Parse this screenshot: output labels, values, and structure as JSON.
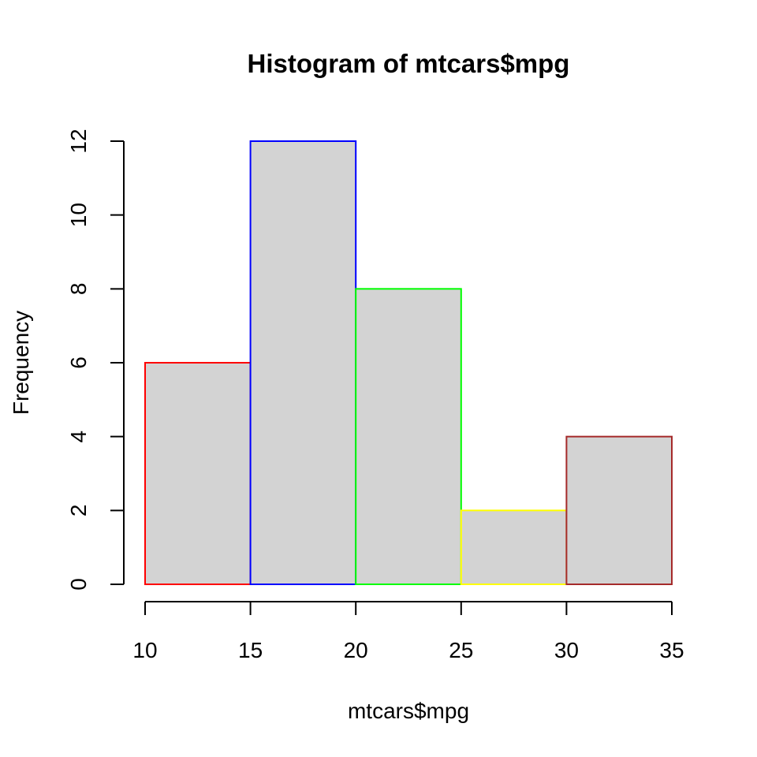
{
  "chart_data": {
    "type": "bar",
    "title": "Histogram of mtcars$mpg",
    "xlabel": "mtcars$mpg",
    "ylabel": "Frequency",
    "bins": [
      {
        "x0": 10,
        "x1": 15,
        "count": 6,
        "border": "#ff0000"
      },
      {
        "x0": 15,
        "x1": 20,
        "count": 12,
        "border": "#0000ff"
      },
      {
        "x0": 20,
        "x1": 25,
        "count": 8,
        "border": "#00ff00"
      },
      {
        "x0": 25,
        "x1": 30,
        "count": 2,
        "border": "#ffff00"
      },
      {
        "x0": 30,
        "x1": 35,
        "count": 4,
        "border": "#a52a2a"
      }
    ],
    "fill_color": "#d3d3d3",
    "xlim": [
      10,
      35
    ],
    "ylim": [
      0,
      12
    ],
    "xticks": [
      10,
      15,
      20,
      25,
      30,
      35
    ],
    "yticks": [
      0,
      2,
      4,
      6,
      8,
      10,
      12
    ],
    "grid": false,
    "legend": "none"
  }
}
